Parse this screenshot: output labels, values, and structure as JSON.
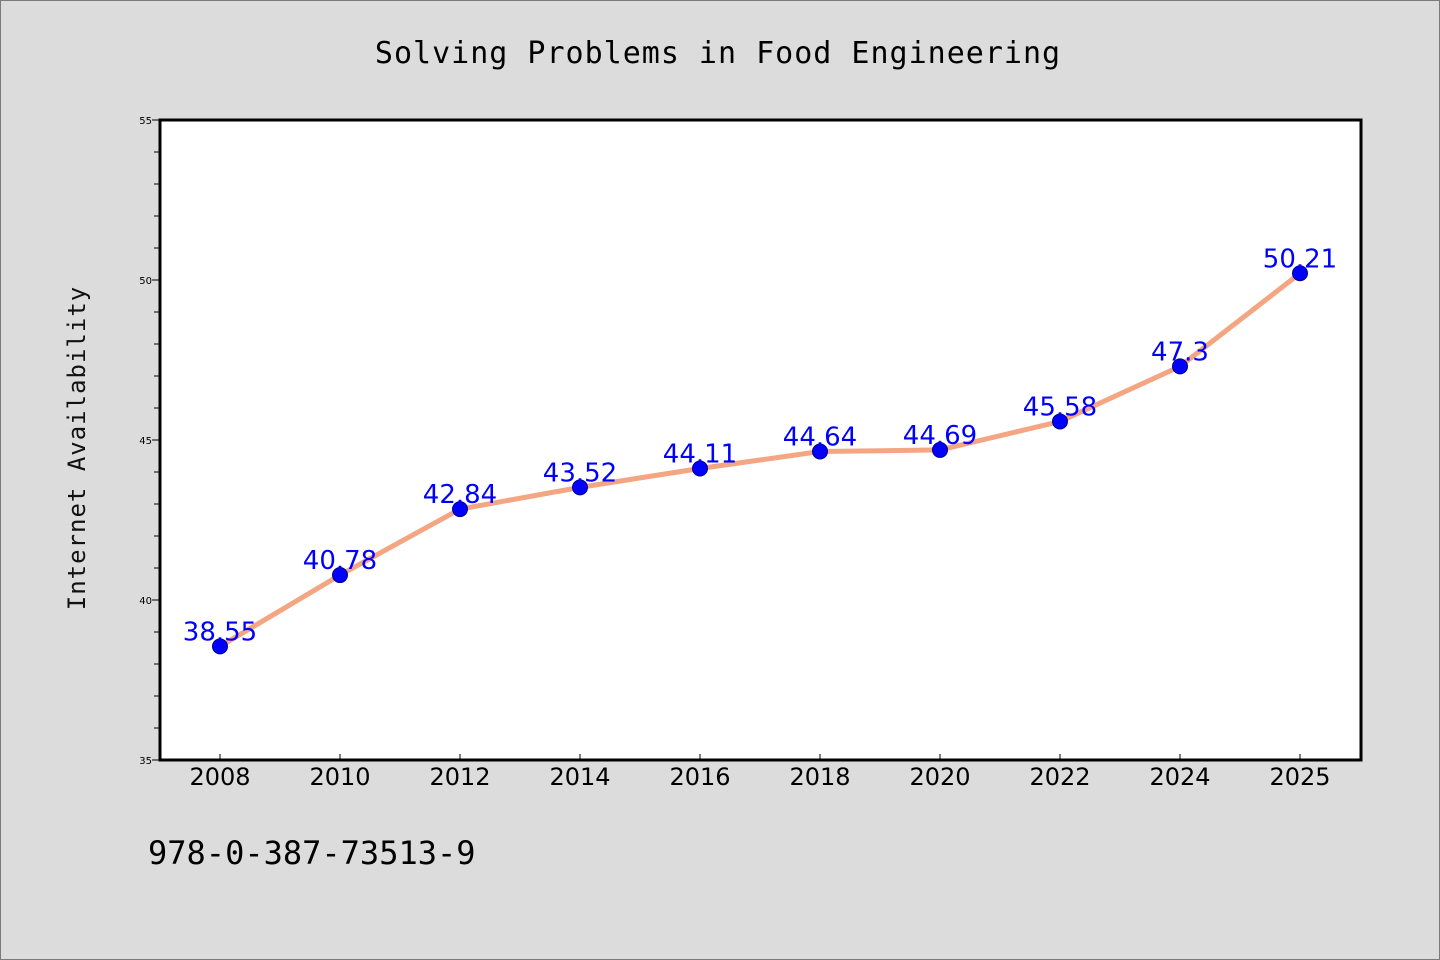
{
  "chart_data": {
    "type": "line",
    "title": "Solving Problems in Food Engineering",
    "xlabel": "",
    "ylabel": "Internet Availability",
    "categories": [
      "2008",
      "2010",
      "2012",
      "2014",
      "2016",
      "2018",
      "2020",
      "2022",
      "2024",
      "2025"
    ],
    "series": [
      {
        "values": [
          38.55,
          40.78,
          42.84,
          43.52,
          44.11,
          44.64,
          44.69,
          45.58,
          47.3,
          50.21
        ],
        "labels": [
          "38.55",
          "40.78",
          "42.84",
          "43.52",
          "44.11",
          "44.64",
          "44.69",
          "45.58",
          "47.3",
          "50.21"
        ]
      }
    ],
    "ylim": [
      35,
      55
    ],
    "yticks": [
      "35",
      "40",
      "45",
      "50",
      "55"
    ],
    "grid": false,
    "legend": "none",
    "colors": {
      "background": "#dcdcdc",
      "plot_background": "#ffffff",
      "line": "#f4a582",
      "marker": "#0000ff",
      "data_label": "#0000ff"
    }
  },
  "footer": {
    "isbn": "978-0-387-73513-9"
  }
}
